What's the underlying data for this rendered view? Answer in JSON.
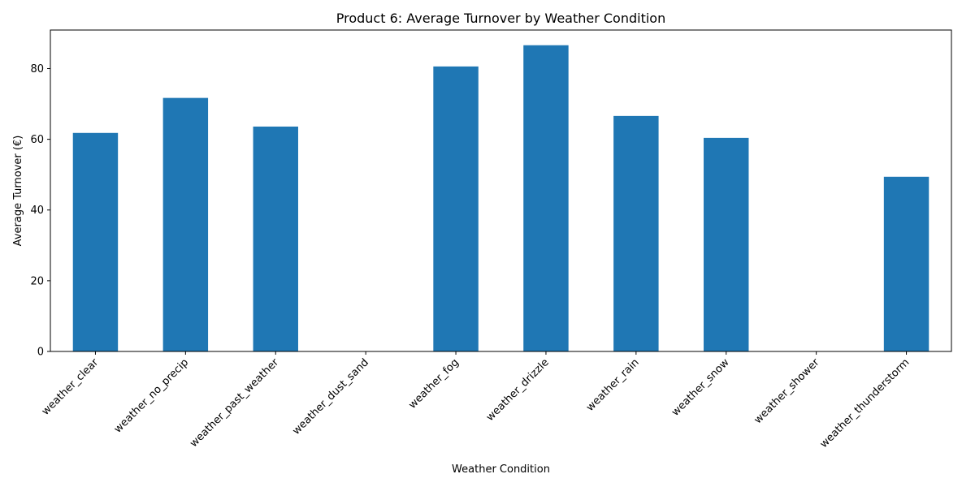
{
  "chart_data": {
    "type": "bar",
    "title": "Product 6: Average Turnover by Weather Condition",
    "xlabel": "Weather Condition",
    "ylabel": "Average Turnover (€)",
    "categories": [
      "weather_clear",
      "weather_no_precip",
      "weather_past_weather",
      "weather_dust_sand",
      "weather_fog",
      "weather_drizzle",
      "weather_rain",
      "weather_snow",
      "weather_shower",
      "weather_thunderstorm"
    ],
    "values": [
      61.8,
      71.7,
      63.6,
      0,
      80.6,
      86.6,
      66.6,
      60.4,
      0,
      49.4
    ],
    "ylim": [
      0,
      90.9
    ],
    "yticks": [
      0,
      20,
      40,
      60,
      80
    ],
    "grid": false,
    "bar_color": "#1f77b4",
    "xtick_rotation_deg": 45
  }
}
